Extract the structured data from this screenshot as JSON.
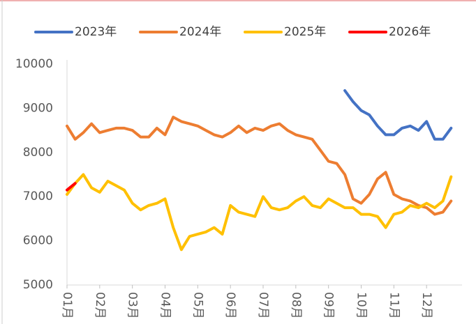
{
  "chart_data": {
    "type": "line",
    "categories": [
      "01月",
      null,
      null,
      null,
      "02月",
      null,
      null,
      null,
      "03月",
      null,
      null,
      null,
      "04月",
      null,
      null,
      null,
      "05月",
      null,
      null,
      null,
      "06月",
      null,
      null,
      null,
      "07月",
      null,
      null,
      null,
      "08月",
      null,
      null,
      null,
      "09月",
      null,
      null,
      null,
      "10月",
      null,
      null,
      null,
      "11月",
      null,
      null,
      null,
      "12月",
      null,
      null,
      null
    ],
    "ylim": [
      5000,
      10000
    ],
    "yticks": [
      5000,
      6000,
      7000,
      8000,
      9000,
      10000
    ],
    "legend": "top",
    "series": [
      {
        "name": "2023年",
        "color": "#4472c4",
        "values": [
          null,
          null,
          null,
          null,
          null,
          null,
          null,
          null,
          null,
          null,
          null,
          null,
          null,
          null,
          null,
          null,
          null,
          null,
          null,
          null,
          null,
          null,
          null,
          null,
          null,
          null,
          null,
          null,
          null,
          null,
          null,
          null,
          null,
          null,
          9400,
          9150,
          8950,
          8850,
          8600,
          8400,
          8400,
          8550,
          8600,
          8500,
          8700,
          8300,
          8300,
          8550
        ]
      },
      {
        "name": "2024年",
        "color": "#ed7d31",
        "values": [
          8600,
          8300,
          8450,
          8650,
          8450,
          8500,
          8550,
          8550,
          8500,
          8350,
          8350,
          8550,
          8400,
          8800,
          8700,
          8650,
          8600,
          8500,
          8400,
          8350,
          8450,
          8600,
          8450,
          8550,
          8500,
          8600,
          8650,
          8500,
          8400,
          8350,
          8300,
          8050,
          7800,
          7750,
          7500,
          6950,
          6850,
          7050,
          7400,
          7550,
          7050,
          6950,
          6900,
          6800,
          6750,
          6600,
          6650,
          6900
        ]
      },
      {
        "name": "2025年",
        "color": "#ffc000",
        "values": [
          7050,
          7300,
          7500,
          7200,
          7100,
          7350,
          7250,
          7150,
          6850,
          6700,
          6800,
          6850,
          6950,
          6300,
          5800,
          6100,
          6150,
          6200,
          6300,
          6150,
          6800,
          6650,
          6600,
          6550,
          7000,
          6750,
          6700,
          6750,
          6900,
          7000,
          6800,
          6750,
          6950,
          6850,
          6750,
          6750,
          6600,
          6600,
          6550,
          6300,
          6600,
          6650,
          6800,
          6750,
          6850,
          6750,
          6900,
          7450
        ]
      },
      {
        "name": "2026年",
        "color": "#ff0000",
        "values": [
          7150,
          7300,
          null,
          null,
          null,
          null,
          null,
          null,
          null,
          null,
          null,
          null,
          null,
          null,
          null,
          null,
          null,
          null,
          null,
          null,
          null,
          null,
          null,
          null,
          null,
          null,
          null,
          null,
          null,
          null,
          null,
          null,
          null,
          null,
          null,
          null,
          null,
          null,
          null,
          null,
          null,
          null,
          null,
          null,
          null,
          null,
          null,
          null
        ]
      }
    ]
  }
}
